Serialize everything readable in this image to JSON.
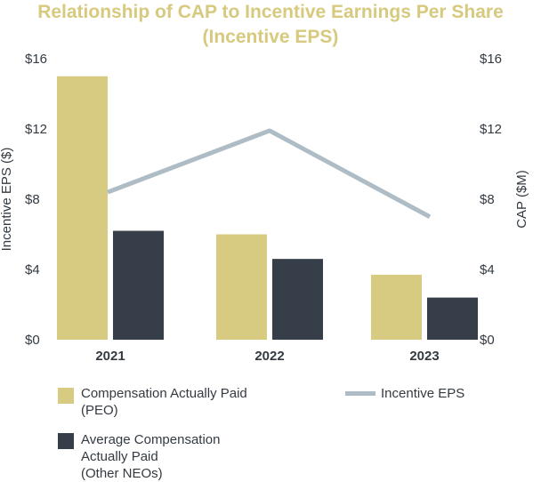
{
  "chart_data": {
    "type": "bar+line",
    "title": "Relationship of CAP to Incentive Earnings Per Share",
    "subtitle": "(Incentive EPS)",
    "categories": [
      "2021",
      "2022",
      "2023"
    ],
    "series": [
      {
        "name": "Compensation Actually Paid (PEO)",
        "type": "bar",
        "axis": "right",
        "values": [
          15.0,
          6.0,
          3.7
        ],
        "color": "#d7cb82"
      },
      {
        "name": "Average Compensation Actually Paid (Other NEOs)",
        "type": "bar",
        "axis": "right",
        "values": [
          6.2,
          4.6,
          2.4
        ],
        "color": "#363f49"
      },
      {
        "name": "Incentive EPS",
        "type": "line",
        "axis": "left",
        "values": [
          8.4,
          11.9,
          7.0
        ],
        "color": "#aebcc5"
      }
    ],
    "left_axis": {
      "label": "Incentive EPS ($)",
      "ticks": [
        "$0",
        "$4",
        "$8",
        "$12",
        "$16"
      ],
      "ylim": [
        0,
        16
      ]
    },
    "right_axis": {
      "label": "CAP ($M)",
      "ticks": [
        "$0",
        "$4",
        "$8",
        "$12",
        "$16"
      ],
      "ylim": [
        0,
        16
      ]
    },
    "legend": {
      "peo_line1": "Compensation Actually Paid",
      "peo_line2": "(PEO)",
      "neo_line1": "Average Compensation",
      "neo_line2": "Actually Paid",
      "neo_line3": "(Other NEOs)",
      "eps": "Incentive EPS"
    }
  }
}
